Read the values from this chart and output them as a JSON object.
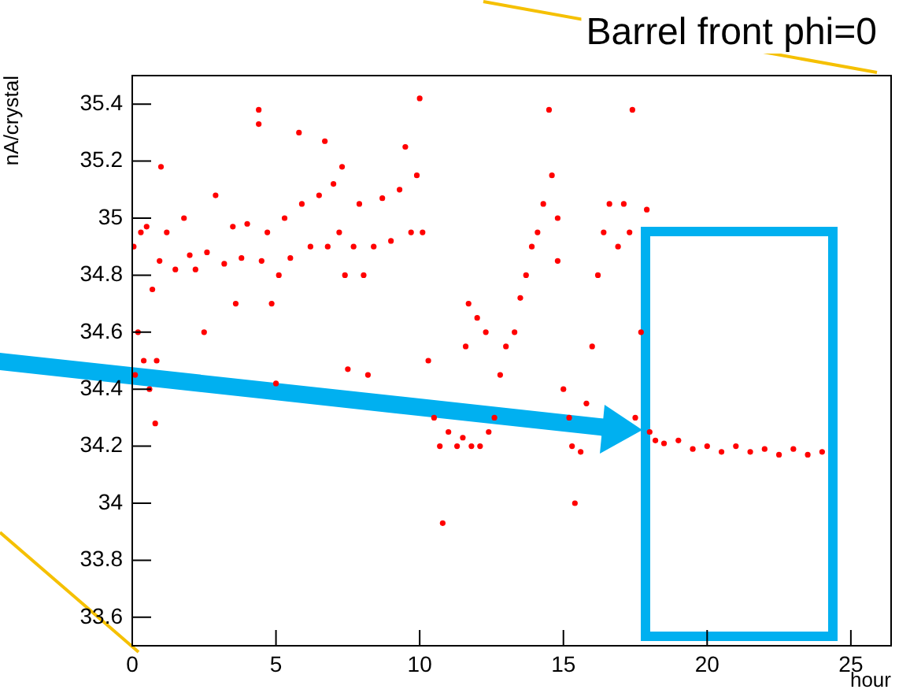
{
  "chart_data": {
    "type": "scatter",
    "title": "Barrel front phi=0",
    "xlabel": "hour",
    "ylabel": "nA/crystal",
    "xlim": [
      0,
      26.4
    ],
    "xticks": [
      0,
      5,
      10,
      15,
      20,
      25
    ],
    "ylim": [
      33.5,
      35.5
    ],
    "yticks": [
      33.6,
      33.8,
      34,
      34.2,
      34.4,
      34.6,
      34.8,
      35,
      35.2,
      35.4
    ],
    "grid": false,
    "legend": false,
    "marker": "circle",
    "series": [
      {
        "color": "#ff0000",
        "x": [
          0.05,
          0.1,
          0.2,
          0.3,
          0.4,
          0.5,
          0.6,
          0.7,
          0.8,
          0.85,
          0.95,
          1.0,
          1.2,
          1.5,
          1.8,
          2.0,
          2.2,
          2.5,
          2.6,
          2.9,
          3.2,
          3.5,
          3.6,
          3.8,
          4.0,
          4.4,
          4.4,
          4.5,
          4.7,
          4.85,
          5.0,
          5.1,
          5.3,
          5.5,
          5.8,
          5.9,
          6.2,
          6.5,
          6.7,
          6.8,
          7.0,
          7.2,
          7.3,
          7.4,
          7.5,
          7.7,
          7.9,
          8.05,
          8.2,
          8.4,
          8.7,
          9.0,
          9.3,
          9.5,
          9.7,
          9.9,
          10.0,
          10.1,
          10.3,
          10.5,
          10.7,
          10.8,
          11.0,
          11.3,
          11.5,
          11.6,
          11.7,
          11.8,
          12.0,
          12.1,
          12.3,
          12.4,
          12.6,
          12.8,
          13.0,
          13.3,
          13.5,
          13.7,
          13.9,
          14.1,
          14.3,
          14.5,
          14.6,
          14.8,
          14.8,
          15.0,
          15.2,
          15.3,
          15.4,
          15.6,
          15.8,
          16.0,
          16.2,
          16.4,
          16.6,
          16.9,
          17.1,
          17.3,
          17.4,
          17.5,
          17.7,
          17.9,
          18.0,
          18.2,
          18.5,
          19.0,
          19.5,
          20.0,
          20.5,
          21.0,
          21.5,
          22.0,
          22.5,
          23.0,
          23.5,
          24.0
        ],
        "values": [
          34.9,
          34.45,
          34.6,
          34.95,
          34.5,
          34.97,
          34.4,
          34.75,
          34.28,
          34.5,
          34.85,
          35.18,
          34.95,
          34.82,
          35.0,
          34.87,
          34.82,
          34.6,
          34.88,
          35.08,
          34.84,
          34.97,
          34.7,
          34.86,
          34.98,
          35.38,
          35.33,
          34.85,
          34.95,
          34.7,
          34.42,
          34.8,
          35.0,
          34.86,
          35.3,
          35.05,
          34.9,
          35.08,
          35.27,
          34.9,
          35.12,
          34.95,
          35.18,
          34.8,
          34.47,
          34.9,
          35.05,
          34.8,
          34.45,
          34.9,
          35.07,
          34.92,
          35.1,
          35.25,
          34.95,
          35.15,
          35.42,
          34.95,
          34.5,
          34.3,
          34.2,
          33.93,
          34.25,
          34.2,
          34.23,
          34.55,
          34.7,
          34.2,
          34.65,
          34.2,
          34.6,
          34.25,
          34.3,
          34.45,
          34.55,
          34.6,
          34.72,
          34.8,
          34.9,
          34.95,
          35.05,
          35.38,
          35.15,
          35.0,
          34.85,
          34.4,
          34.3,
          34.2,
          34.0,
          34.18,
          34.35,
          34.55,
          34.8,
          34.95,
          35.05,
          34.9,
          35.05,
          34.95,
          35.38,
          34.3,
          34.6,
          35.03,
          34.25,
          34.22,
          34.21,
          34.22,
          34.19,
          34.2,
          34.18,
          34.2,
          34.18,
          34.19,
          34.17,
          34.19,
          34.17,
          34.18
        ]
      }
    ]
  }
}
